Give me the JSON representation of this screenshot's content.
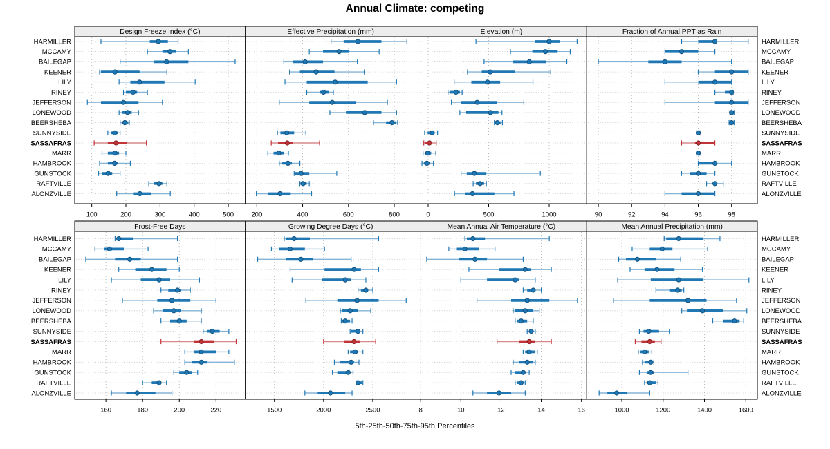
{
  "title": "Annual Climate: competing",
  "caption": "5th-25th-50th-75th-95th Percentiles",
  "stations": [
    "HARMILLER",
    "MCCAMY",
    "BAILEGAP",
    "KEENER",
    "LILY",
    "RINEY",
    "JEFFERSON",
    "LONEWOOD",
    "BEERSHEBA",
    "SUNNYSIDE",
    "SASSAFRAS",
    "MARR",
    "HAMBROOK",
    "GUNSTOCK",
    "RAFTVILLE",
    "ALONZVILLE"
  ],
  "highlight_station": "SASSAFRAS",
  "percentiles": [
    "5th",
    "25th",
    "50th",
    "75th",
    "95th"
  ],
  "colors": {
    "series": "#1f77b4",
    "series_light": "#85b4d6",
    "series_dark": "#12527e",
    "highlight": "#c13438",
    "highlight_light": "#d98a8c",
    "highlight_dark": "#821d20",
    "grid": "#b5b5b5",
    "rowline": "#c4c4c4",
    "header_fill": "#ededed",
    "border": "#000000"
  },
  "chart_data": [
    {
      "type": "dotplot-interval",
      "title": "Design Freeze Index (°C)",
      "row": 0,
      "col": 0,
      "xlim": [
        50,
        550
      ],
      "ticks": [
        100,
        200,
        300,
        400,
        500
      ],
      "values": [
        [
          127,
          270,
          295,
          323,
          353
        ],
        [
          263,
          307,
          329,
          347,
          383
        ],
        [
          183,
          283,
          319,
          383,
          520
        ],
        [
          123,
          127,
          168,
          240,
          320
        ],
        [
          180,
          213,
          240,
          313,
          403
        ],
        [
          193,
          200,
          221,
          233,
          263
        ],
        [
          87,
          127,
          193,
          237,
          307
        ],
        [
          180,
          188,
          205,
          217,
          237
        ],
        [
          183,
          188,
          197,
          207,
          210
        ],
        [
          147,
          157,
          167,
          177,
          183
        ],
        [
          107,
          147,
          171,
          203,
          260
        ],
        [
          130,
          147,
          168,
          180,
          200
        ],
        [
          123,
          147,
          167,
          177,
          213
        ],
        [
          120,
          130,
          148,
          160,
          183
        ],
        [
          267,
          283,
          297,
          307,
          320
        ],
        [
          173,
          223,
          241,
          273,
          330
        ]
      ]
    },
    {
      "type": "dotplot-interval",
      "title": "Effective Precipitation (mm)",
      "row": 0,
      "col": 1,
      "xlim": [
        150,
        895
      ],
      "ticks": [
        200,
        400,
        600,
        800
      ],
      "values": [
        [
          524,
          579,
          641,
          744,
          855
        ],
        [
          429,
          489,
          559,
          604,
          734
        ],
        [
          318,
          358,
          411,
          489,
          639
        ],
        [
          343,
          388,
          459,
          539,
          669
        ],
        [
          323,
          418,
          542,
          684,
          810
        ],
        [
          418,
          474,
          491,
          514,
          534
        ],
        [
          298,
          429,
          529,
          634,
          770
        ],
        [
          519,
          589,
          671,
          744,
          810
        ],
        [
          709,
          764,
          790,
          806,
          815
        ],
        [
          290,
          303,
          331,
          363,
          414
        ],
        [
          263,
          293,
          333,
          358,
          474
        ],
        [
          248,
          273,
          296,
          318,
          338
        ],
        [
          298,
          308,
          336,
          353,
          388
        ],
        [
          363,
          368,
          393,
          429,
          549
        ],
        [
          388,
          391,
          402,
          418,
          429
        ],
        [
          198,
          248,
          301,
          348,
          439
        ]
      ]
    },
    {
      "type": "dotplot-interval",
      "title": "Elevation (m)",
      "row": 0,
      "col": 2,
      "xlim": [
        -100,
        1310
      ],
      "ticks": [
        0,
        500,
        1000
      ],
      "values": [
        [
          395,
          880,
          1000,
          1089,
          1231
        ],
        [
          680,
          861,
          969,
          1070,
          1174
        ],
        [
          462,
          699,
          836,
          975,
          1146
        ],
        [
          325,
          443,
          513,
          718,
          1013
        ],
        [
          215,
          357,
          490,
          595,
          866
        ],
        [
          164,
          177,
          230,
          262,
          281
        ],
        [
          192,
          272,
          405,
          566,
          791
        ],
        [
          262,
          314,
          515,
          581,
          610
        ],
        [
          547,
          557,
          572,
          599,
          614
        ],
        [
          -29,
          -4,
          34,
          53,
          78
        ],
        [
          -36,
          -23,
          11,
          34,
          67
        ],
        [
          -42,
          -28,
          -4,
          25,
          63
        ],
        [
          -51,
          -36,
          -10,
          15,
          44
        ],
        [
          272,
          319,
          382,
          481,
          927
        ],
        [
          372,
          395,
          429,
          462,
          481
        ],
        [
          218,
          306,
          366,
          547,
          709
        ]
      ]
    },
    {
      "type": "dotplot-interval",
      "title": "Fraction of Annual PPT as Rain",
      "row": 0,
      "col": 3,
      "xlim": [
        89.3,
        99.55
      ],
      "ticks": [
        90,
        92,
        94,
        96,
        98
      ],
      "values": [
        [
          95,
          96,
          97,
          97,
          99
        ],
        [
          94,
          94,
          95,
          96,
          97
        ],
        [
          90,
          93,
          94,
          95,
          98
        ],
        [
          96,
          97,
          98,
          99,
          99
        ],
        [
          94,
          96,
          97,
          98,
          98
        ],
        [
          97,
          97.6,
          98,
          98,
          98.1
        ],
        [
          94,
          97,
          98,
          99,
          99
        ],
        [
          97.9,
          98,
          98,
          98,
          98.15
        ],
        [
          97.85,
          97.95,
          98,
          98.05,
          98.15
        ],
        [
          95.9,
          95.95,
          96,
          96.05,
          96.1
        ],
        [
          95,
          95.8,
          96,
          97,
          97
        ],
        [
          95.9,
          95.95,
          96,
          96.05,
          96.1
        ],
        [
          96,
          96,
          97,
          97,
          98
        ],
        [
          95,
          95.5,
          96,
          96.5,
          97
        ],
        [
          96.5,
          96.9,
          97,
          97.1,
          97.5
        ],
        [
          94,
          95,
          96,
          97,
          97
        ]
      ]
    },
    {
      "type": "dotplot-interval",
      "title": "Frost-Free Days",
      "row": 1,
      "col": 0,
      "xlim": [
        143,
        236
      ],
      "ticks": [
        160,
        180,
        200,
        220
      ],
      "values": [
        [
          165,
          166,
          167,
          175,
          199
        ],
        [
          154,
          159,
          162,
          170,
          183
        ],
        [
          149,
          165,
          173,
          179,
          199
        ],
        [
          167,
          176,
          185,
          193,
          200
        ],
        [
          163,
          179,
          189,
          195,
          211
        ],
        [
          190,
          194,
          199,
          201,
          206
        ],
        [
          169,
          188,
          196,
          206,
          220
        ],
        [
          186,
          191,
          197,
          201,
          212
        ],
        [
          190,
          195,
          200,
          204,
          212
        ],
        [
          213,
          215,
          218,
          222,
          227
        ],
        [
          190,
          208,
          212,
          219,
          231
        ],
        [
          203,
          208,
          212,
          220,
          227
        ],
        [
          203,
          207,
          212,
          215,
          230
        ],
        [
          197,
          200,
          204,
          207,
          210
        ],
        [
          180,
          185,
          189,
          190,
          193
        ],
        [
          163,
          171,
          177,
          187,
          196
        ]
      ]
    },
    {
      "type": "dotplot-interval",
      "title": "Growing Degree Days (°C)",
      "row": 1,
      "col": 1,
      "xlim": [
        1205,
        2940
      ],
      "ticks": [
        1500,
        2000,
        2500
      ],
      "values": [
        [
          1600,
          1620,
          1700,
          1860,
          2560
        ],
        [
          1470,
          1550,
          1660,
          1810,
          2010
        ],
        [
          1330,
          1620,
          1770,
          1890,
          2280
        ],
        [
          1660,
          2010,
          2310,
          2380,
          2560
        ],
        [
          1680,
          1980,
          2220,
          2280,
          2430
        ],
        [
          2350,
          2380,
          2430,
          2450,
          2500
        ],
        [
          1820,
          2140,
          2340,
          2560,
          2840
        ],
        [
          2170,
          2190,
          2270,
          2350,
          2480
        ],
        [
          2180,
          2190,
          2220,
          2270,
          2290
        ],
        [
          2270,
          2280,
          2350,
          2370,
          2400
        ],
        [
          2000,
          2210,
          2310,
          2370,
          2530
        ],
        [
          2250,
          2270,
          2320,
          2350,
          2400
        ],
        [
          2110,
          2170,
          2280,
          2310,
          2360
        ],
        [
          2090,
          2140,
          2250,
          2270,
          2300
        ],
        [
          2330,
          2335,
          2350,
          2390,
          2400
        ],
        [
          1810,
          1940,
          2070,
          2220,
          2290
        ]
      ]
    },
    {
      "type": "dotplot-interval",
      "title": "Mean Annual Air Temperature (°C)",
      "row": 1,
      "col": 2,
      "xlim": [
        7.77,
        16.26
      ],
      "ticks": [
        8,
        10,
        12,
        14,
        16
      ],
      "values": [
        [
          10.2,
          10.3,
          10.6,
          11.2,
          14.4
        ],
        [
          9.4,
          9.8,
          10.2,
          10.9,
          11.7
        ],
        [
          8.3,
          9.9,
          10.7,
          11.3,
          13.1
        ],
        [
          10.4,
          11.9,
          13.2,
          13.5,
          14.5
        ],
        [
          10.0,
          11.3,
          12.7,
          12.9,
          13.7
        ],
        [
          13.1,
          13.3,
          13.6,
          13.7,
          14.0
        ],
        [
          10.8,
          12.5,
          13.3,
          14.4,
          15.8
        ],
        [
          12.6,
          12.7,
          13.2,
          13.6,
          13.9
        ],
        [
          12.7,
          12.8,
          13.0,
          13.3,
          13.6
        ],
        [
          13.3,
          13.4,
          13.5,
          13.6,
          13.7
        ],
        [
          11.8,
          12.9,
          13.4,
          13.7,
          14.5
        ],
        [
          13.1,
          13.2,
          13.4,
          13.7,
          13.8
        ],
        [
          12.6,
          12.9,
          13.3,
          13.6,
          13.7
        ],
        [
          12.5,
          12.7,
          13.1,
          13.2,
          13.4
        ],
        [
          12.7,
          12.8,
          13.0,
          13.1,
          13.2
        ],
        [
          10.6,
          11.3,
          11.9,
          12.5,
          13.2
        ]
      ]
    },
    {
      "type": "dotplot-interval",
      "title": "Mean Annual Precipitation (mm)",
      "row": 1,
      "col": 3,
      "xlim": [
        830,
        1656
      ],
      "ticks": [
        1000,
        1200,
        1400,
        1600
      ],
      "values": [
        [
          1205,
          1215,
          1275,
          1395,
          1475
        ],
        [
          1050,
          1135,
          1195,
          1245,
          1415
        ],
        [
          985,
          1020,
          1075,
          1165,
          1285
        ],
        [
          1040,
          1110,
          1170,
          1255,
          1390
        ],
        [
          980,
          1140,
          1275,
          1395,
          1615
        ],
        [
          1165,
          1230,
          1270,
          1290,
          1300
        ],
        [
          960,
          1135,
          1320,
          1410,
          1555
        ],
        [
          1290,
          1315,
          1390,
          1490,
          1605
        ],
        [
          1440,
          1490,
          1545,
          1570,
          1590
        ],
        [
          1085,
          1105,
          1130,
          1180,
          1230
        ],
        [
          1065,
          1095,
          1135,
          1160,
          1190
        ],
        [
          1080,
          1090,
          1110,
          1130,
          1145
        ],
        [
          1100,
          1110,
          1140,
          1150,
          1155
        ],
        [
          1085,
          1120,
          1140,
          1155,
          1320
        ],
        [
          1110,
          1120,
          1135,
          1165,
          1175
        ],
        [
          890,
          930,
          975,
          1025,
          1135
        ]
      ]
    }
  ]
}
